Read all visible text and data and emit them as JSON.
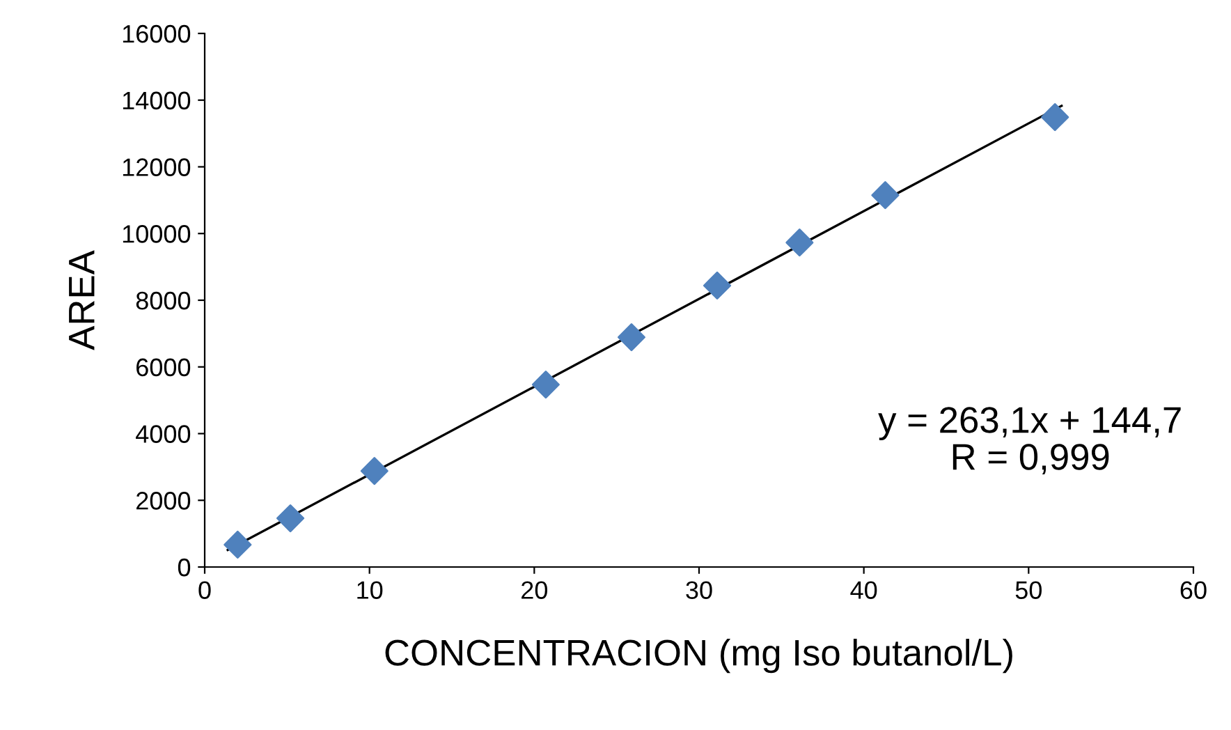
{
  "chart_data": {
    "type": "scatter",
    "xlabel": "CONCENTRACION (mg Iso butanol/L)",
    "ylabel": "AREA",
    "series": [
      {
        "color": "#4f81bd",
        "marker": "diamond",
        "x": [
          2,
          5.2,
          10.3,
          20.7,
          25.9,
          31.1,
          36.1,
          41.3,
          51.6
        ],
        "values": [
          670,
          1460,
          2880,
          5470,
          6890,
          8440,
          9730,
          11150,
          13490
        ]
      },
      {
        "type": "line",
        "color": "#000000",
        "marker": "none",
        "x": [
          1.4,
          52
        ],
        "values": [
          510,
          13830
        ]
      }
    ],
    "xlim": [
      0,
      60
    ],
    "xticks": [
      0,
      10,
      20,
      30,
      40,
      50,
      60
    ],
    "ylim": [
      0,
      16000
    ],
    "yticks": [
      0,
      2000,
      4000,
      6000,
      8000,
      10000,
      12000,
      14000,
      16000
    ],
    "grid": false,
    "annotations": [
      "y = 263,1x + 144,7\nR = 0,999"
    ]
  }
}
